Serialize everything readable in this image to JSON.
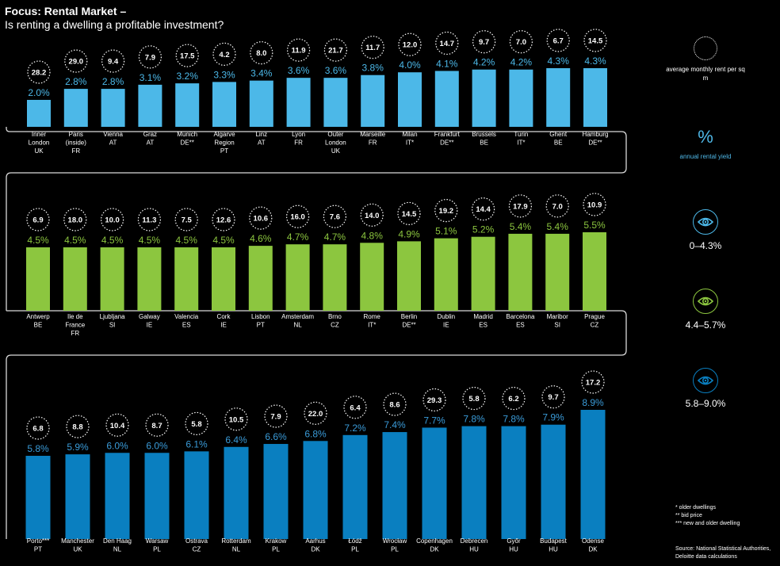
{
  "title": "Focus: Rental Market –",
  "subtitle": "Is renting a dwelling a profitable investment?",
  "colors": {
    "group1": "#4cb8e8",
    "group2": "#8cc63f",
    "group3": "#0a7fc0",
    "background": "#000000",
    "frame": "#d9d9d9"
  },
  "legend": {
    "rent_label": "average monthly rent per sq m",
    "pct_symbol": "%",
    "yield_label": "annual rental yield",
    "ranges": [
      "0–4.3%",
      "4.4–5.7%",
      "5.8–9.0%"
    ],
    "icon": "eye-icon"
  },
  "notes": [
    "* older dwellings",
    "** bid price",
    "*** new and older dwelling"
  ],
  "source": [
    "Source: National Statistical Authorities,",
    "Deloitte data calculations"
  ],
  "chart_data": [
    {
      "type": "bar",
      "title": "annual rental yield (%) and average monthly rent per sq m — 0–4.3%",
      "series": [
        {
          "name": "annual rental yield",
          "values": [
            2.0,
            2.8,
            2.8,
            3.1,
            3.2,
            3.3,
            3.4,
            3.6,
            3.6,
            3.8,
            4.0,
            4.1,
            4.2,
            4.2,
            4.3,
            4.3
          ]
        },
        {
          "name": "average monthly rent per sq m",
          "values": [
            28.2,
            29.0,
            9.4,
            7.9,
            17.5,
            4.2,
            8.0,
            11.9,
            21.7,
            11.7,
            12.0,
            14.7,
            9.7,
            7.0,
            6.7,
            14.5
          ]
        }
      ],
      "categories": [
        [
          "Inner",
          "London",
          "UK"
        ],
        [
          "Paris",
          "(inside)",
          "FR"
        ],
        [
          "Vienna",
          "AT"
        ],
        [
          "Graz",
          "AT"
        ],
        [
          "Munich",
          "DE**"
        ],
        [
          "Algarve",
          "Region",
          "PT"
        ],
        [
          "Linz",
          "AT"
        ],
        [
          "Lyon",
          "FR"
        ],
        [
          "Outer",
          "London",
          "UK"
        ],
        [
          "Marseille",
          "FR"
        ],
        [
          "Milan",
          "IT*"
        ],
        [
          "Frankfurt",
          "DE**"
        ],
        [
          "Brussels",
          "BE"
        ],
        [
          "Turin",
          "IT*"
        ],
        [
          "Ghent",
          "BE"
        ],
        [
          "Hamburg",
          "DE**"
        ]
      ],
      "value_labels": [
        "2.0%",
        "2.8%",
        "2.8%",
        "3.1%",
        "3.2%",
        "3.3%",
        "3.4%",
        "3.6%",
        "3.6%",
        "3.8%",
        "4.0%",
        "4.1%",
        "4.2%",
        "4.2%",
        "4.3%",
        "4.3%"
      ],
      "rent_labels": [
        "28.2",
        "29.0",
        "9.4",
        "7.9",
        "17.5",
        "4.2",
        "8.0",
        "11.9",
        "21.7",
        "11.7",
        "12.0",
        "14.7",
        "9.7",
        "7.0",
        "6.7",
        "14.5"
      ]
    },
    {
      "type": "bar",
      "title": "annual rental yield (%) and average monthly rent per sq m — 4.4–5.7%",
      "series": [
        {
          "name": "annual rental yield",
          "values": [
            4.5,
            4.5,
            4.5,
            4.5,
            4.5,
            4.5,
            4.6,
            4.7,
            4.7,
            4.8,
            4.9,
            5.1,
            5.2,
            5.4,
            5.4,
            5.5
          ]
        },
        {
          "name": "average monthly rent per sq m",
          "values": [
            6.9,
            18.0,
            10.0,
            11.3,
            7.5,
            12.6,
            10.6,
            16.0,
            7.6,
            14.0,
            14.5,
            19.2,
            14.4,
            17.9,
            7.0,
            10.9
          ]
        }
      ],
      "categories": [
        [
          "Antwerp",
          "BE"
        ],
        [
          "Ile de",
          "France",
          "FR"
        ],
        [
          "Ljubljana",
          "SI"
        ],
        [
          "Galway",
          "IE"
        ],
        [
          "Valencia",
          "ES"
        ],
        [
          "Cork",
          "IE"
        ],
        [
          "Lisbon",
          "PT"
        ],
        [
          "Amsterdam",
          "NL"
        ],
        [
          "Brno",
          "CZ"
        ],
        [
          "Rome",
          "IT*"
        ],
        [
          "Berlin",
          "DE**"
        ],
        [
          "Dublin",
          "IE"
        ],
        [
          "Madrid",
          "ES"
        ],
        [
          "Barcelona",
          "ES"
        ],
        [
          "Maribor",
          "SI"
        ],
        [
          "Prague",
          "CZ"
        ]
      ],
      "value_labels": [
        "4.5%",
        "4.5%",
        "4.5%",
        "4.5%",
        "4.5%",
        "4.5%",
        "4.6%",
        "4.7%",
        "4.7%",
        "4.8%",
        "4.9%",
        "5.1%",
        "5.2%",
        "5.4%",
        "5.4%",
        "5.5%"
      ],
      "rent_labels": [
        "6.9",
        "18.0",
        "10.0",
        "11.3",
        "7.5",
        "12.6",
        "10.6",
        "16.0",
        "7.6",
        "14.0",
        "14.5",
        "19.2",
        "14.4",
        "17.9",
        "7.0",
        "10.9"
      ]
    },
    {
      "type": "bar",
      "title": "annual rental yield (%) and average monthly rent per sq m — 5.8–9.0%",
      "series": [
        {
          "name": "annual rental yield",
          "values": [
            5.8,
            5.9,
            6.0,
            6.0,
            6.1,
            6.4,
            6.6,
            6.8,
            7.2,
            7.4,
            7.7,
            7.8,
            7.8,
            7.9,
            8.9
          ]
        },
        {
          "name": "average monthly rent per sq m",
          "values": [
            6.8,
            8.8,
            10.4,
            8.7,
            5.8,
            10.5,
            7.9,
            22.0,
            6.4,
            8.6,
            29.3,
            5.8,
            6.2,
            9.7,
            17.2
          ]
        }
      ],
      "categories": [
        [
          "Porto***",
          "PT"
        ],
        [
          "Manchester",
          "UK"
        ],
        [
          "Den Haag",
          "NL"
        ],
        [
          "Warsaw",
          "PL"
        ],
        [
          "Ostrava",
          "CZ"
        ],
        [
          "Rotterdam",
          "NL"
        ],
        [
          "Krakow",
          "PL"
        ],
        [
          "Aarhus",
          "DK"
        ],
        [
          "Łódź",
          "PL"
        ],
        [
          "Wrocław",
          "PL"
        ],
        [
          "Copenhagen",
          "DK"
        ],
        [
          "Debrecen",
          "HU"
        ],
        [
          "Győr",
          "HU"
        ],
        [
          "Budapest",
          "HU"
        ],
        [
          "Odense",
          "DK"
        ]
      ],
      "value_labels": [
        "5.8%",
        "5.9%",
        "6.0%",
        "6.0%",
        "6.1%",
        "6.4%",
        "6.6%",
        "6.8%",
        "7.2%",
        "7.4%",
        "7.7%",
        "7.8%",
        "7.8%",
        "7.9%",
        "8.9%"
      ],
      "rent_labels": [
        "6.8",
        "8.8",
        "10.4",
        "8.7",
        "5.8",
        "10.5",
        "7.9",
        "22.0",
        "6.4",
        "8.6",
        "29.3",
        "5.8",
        "6.2",
        "9.7",
        "17.2"
      ]
    }
  ]
}
